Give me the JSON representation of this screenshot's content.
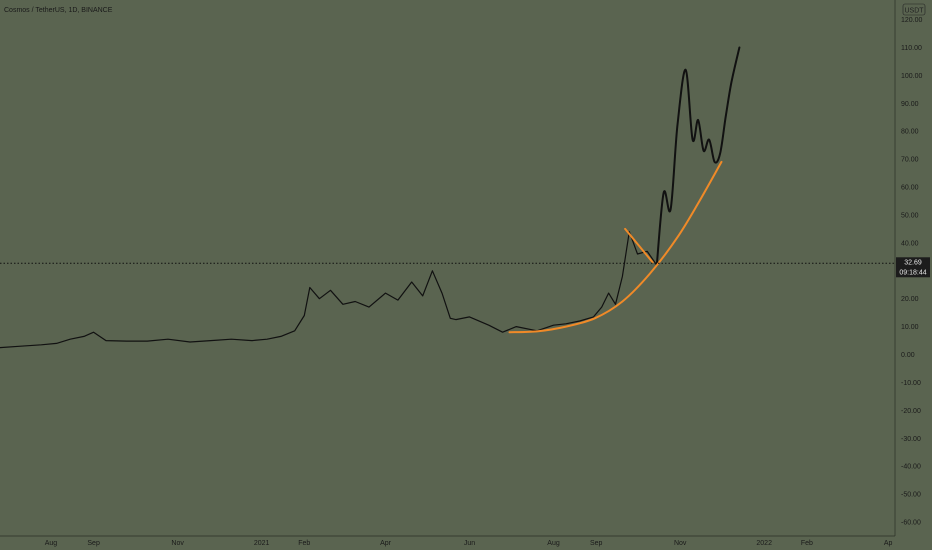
{
  "header": {
    "title": "Cosmos / TetherUS, 1D, BINANCE"
  },
  "currency": "USDT",
  "price_badge": {
    "price": "32.69",
    "countdown": "09:18:44"
  },
  "colors": {
    "background": "#5a6450",
    "price_line": "#111111",
    "curve": "#f08a28",
    "badge_bg": "#1c1c1c"
  },
  "chart_data": {
    "type": "line",
    "title": "Cosmos / TetherUS, 1D, BINANCE",
    "ylim": [
      -65,
      127
    ],
    "y_ticks": [
      -60,
      -50,
      -40,
      -30,
      -20,
      -10,
      0,
      10,
      20,
      30,
      40,
      50,
      60,
      70,
      80,
      90,
      100,
      110,
      120
    ],
    "y_tick_labels": [
      "-60.00",
      "-50.00",
      "-40.00",
      "-30.00",
      "-20.00",
      "-10.00",
      "0.00",
      "10.00",
      "20.00",
      "30.00",
      "40.00",
      "50.00",
      "60.00",
      "70.00",
      "80.00",
      "90.00",
      "100.00",
      "110.00",
      "120.00"
    ],
    "x_labels": [
      "Aug",
      "Sep",
      "Nov",
      "2021",
      "Feb",
      "Apr",
      "Jun",
      "Aug",
      "Sep",
      "Nov",
      "2022",
      "Feb",
      "Ap"
    ],
    "x_label_dates": [
      "2020-08-01",
      "2020-09-01",
      "2020-11-01",
      "2021-01-01",
      "2021-02-01",
      "2021-04-01",
      "2021-06-01",
      "2021-08-01",
      "2021-09-01",
      "2021-11-01",
      "2022-01-01",
      "2022-02-01",
      "2022-04-01"
    ],
    "x_range": [
      "2020-06-25",
      "2022-04-06"
    ],
    "last_price": 32.69,
    "series": [
      {
        "x": [
          "2020-06-25",
          "2020-07-10",
          "2020-07-25",
          "2020-08-05",
          "2020-08-15",
          "2020-08-25",
          "2020-09-01",
          "2020-09-10",
          "2020-09-25",
          "2020-10-10",
          "2020-10-25",
          "2020-11-10",
          "2020-11-25",
          "2020-12-10",
          "2020-12-25",
          "2021-01-05",
          "2021-01-15",
          "2021-01-25",
          "2021-02-01",
          "2021-02-05",
          "2021-02-12",
          "2021-02-20",
          "2021-03-01",
          "2021-03-10",
          "2021-03-20",
          "2021-04-01",
          "2021-04-10",
          "2021-04-20",
          "2021-04-28",
          "2021-05-05",
          "2021-05-12",
          "2021-05-18",
          "2021-05-22",
          "2021-06-01",
          "2021-06-15",
          "2021-06-25",
          "2021-07-05",
          "2021-07-20",
          "2021-08-01",
          "2021-08-10",
          "2021-08-20",
          "2021-08-30",
          "2021-09-05",
          "2021-09-10",
          "2021-09-15",
          "2021-09-20",
          "2021-09-25",
          "2021-10-01",
          "2021-10-08",
          "2021-10-15"
        ],
        "y": [
          2.5,
          3.0,
          3.5,
          4.0,
          5.5,
          6.5,
          8.0,
          5.0,
          4.8,
          4.8,
          5.5,
          4.5,
          5.0,
          5.5,
          5.0,
          5.5,
          6.5,
          8.5,
          14.0,
          24.0,
          20.0,
          23.0,
          18.0,
          19.0,
          17.0,
          22.0,
          19.5,
          26.0,
          21.0,
          30.0,
          22.0,
          13.0,
          12.5,
          13.5,
          10.5,
          8.0,
          10.0,
          8.5,
          10.5,
          11.0,
          12.0,
          13.5,
          17.0,
          22.0,
          18.0,
          28.0,
          44.0,
          36.0,
          37.0,
          32.0
        ]
      },
      {
        "x": [
          "2021-10-15",
          "2021-10-20",
          "2021-10-25",
          "2021-10-30",
          "2021-11-05",
          "2021-11-10",
          "2021-11-14",
          "2021-11-18",
          "2021-11-22",
          "2021-11-26",
          "2021-11-30",
          "2021-12-04",
          "2021-12-08",
          "2021-12-14"
        ],
        "y": [
          32.0,
          58.0,
          52.0,
          82.0,
          102.0,
          77.0,
          84.0,
          73.0,
          77.0,
          69.0,
          72.0,
          85.0,
          97.0,
          110.0
        ]
      },
      {
        "x": [
          "2021-06-30",
          "2021-07-20",
          "2021-08-10",
          "2021-08-31",
          "2021-09-20",
          "2021-10-10",
          "2021-10-30",
          "2021-11-15",
          "2021-12-01"
        ],
        "y": [
          8.0,
          8.3,
          10.0,
          13.0,
          19.0,
          29.0,
          42.0,
          55.0,
          69.0
        ]
      },
      {
        "x": [
          "2021-09-22",
          "2021-10-12"
        ],
        "y": [
          45.0,
          33.0
        ]
      }
    ]
  }
}
